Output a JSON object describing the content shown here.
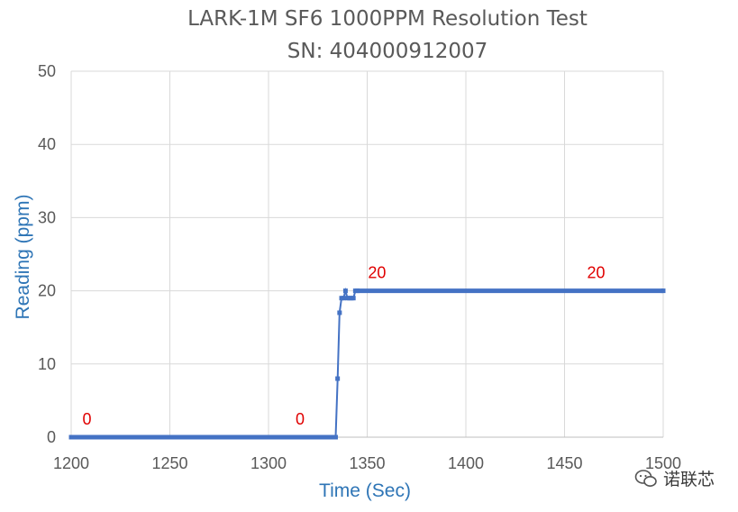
{
  "chart_data": {
    "type": "line",
    "title": "LARK-1M SF6 1000PPM Resolution Test",
    "subtitle": "SN: 404000912007",
    "xlabel": "Time (Sec)",
    "ylabel": "Reading (ppm)",
    "xlim": [
      1200,
      1500
    ],
    "ylim": [
      0,
      50
    ],
    "xticks": [
      1200,
      1250,
      1300,
      1350,
      1400,
      1450,
      1500
    ],
    "yticks": [
      0,
      10,
      20,
      30,
      40,
      50
    ],
    "grid": true,
    "series_color": "#4472c4",
    "series": [
      {
        "x": [
          1200,
          1334,
          1335,
          1336,
          1337,
          1338,
          1339,
          1340,
          1341,
          1342,
          1343,
          1344,
          1345,
          1500
        ],
        "y": [
          0,
          0,
          8,
          17,
          19,
          19,
          20,
          19,
          19,
          19,
          19,
          20,
          20,
          20
        ]
      }
    ],
    "annotations": [
      {
        "x": 1208,
        "y": 0,
        "text": "0"
      },
      {
        "x": 1316,
        "y": 0,
        "text": "0"
      },
      {
        "x": 1355,
        "y": 20,
        "text": "20"
      },
      {
        "x": 1466,
        "y": 20,
        "text": "20"
      }
    ]
  },
  "watermark": {
    "text": "诺联芯",
    "icon": "wechat-icon"
  }
}
